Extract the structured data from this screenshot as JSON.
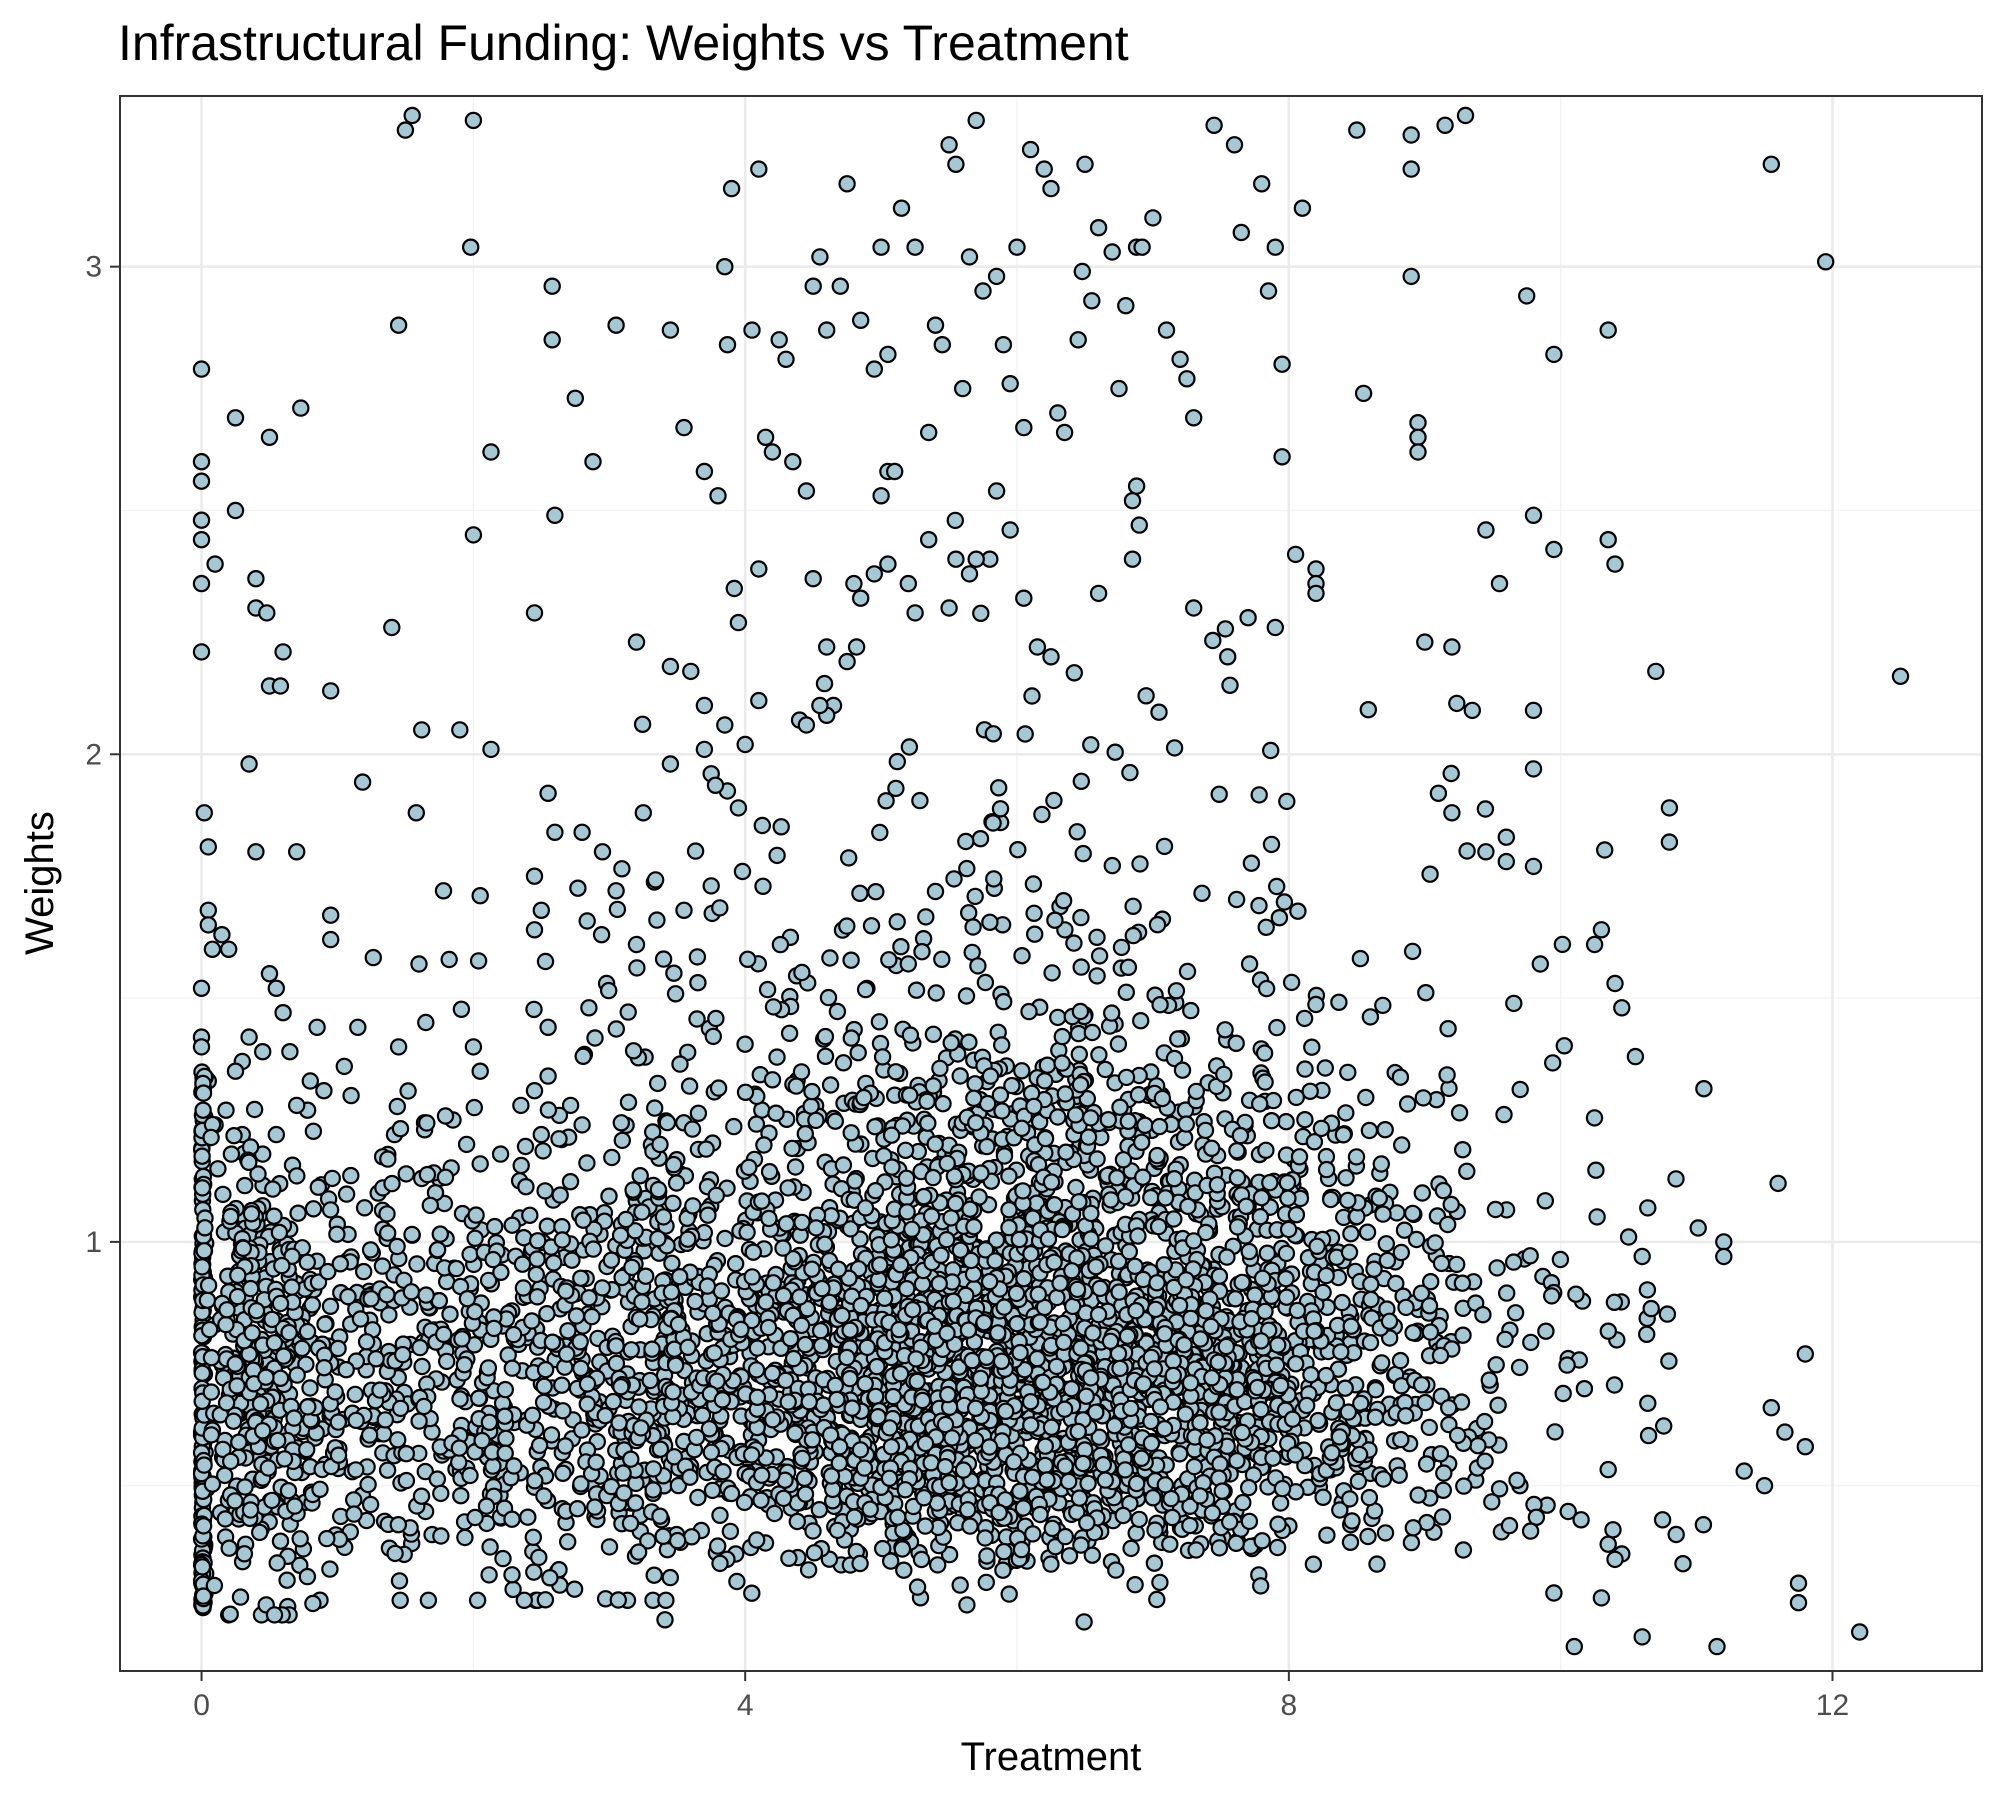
{
  "chart_data": {
    "type": "scatter",
    "title": "Infrastructural Funding: Weights vs Treatment",
    "xlabel": "Treatment",
    "ylabel": "Weights",
    "xlim": [
      -0.6,
      13.1
    ],
    "ylim": [
      0.12,
      3.35
    ],
    "x_ticks": [
      0,
      4,
      8,
      12
    ],
    "y_ticks": [
      1,
      2,
      3
    ],
    "x_tick_labels": [
      "0",
      "4",
      "8",
      "12"
    ],
    "y_tick_labels": [
      "1",
      "2",
      "3"
    ],
    "grid": true,
    "legend": "none",
    "point_fill": "#a6c8d4",
    "point_edge": "#000000",
    "approx_point_count": 5200,
    "points": [
      [
        0.0,
        2.79
      ],
      [
        0.0,
        2.6
      ],
      [
        0.0,
        2.56
      ],
      [
        0.0,
        2.48
      ],
      [
        0.0,
        2.44
      ],
      [
        0.0,
        2.35
      ],
      [
        0.0,
        2.21
      ],
      [
        0.02,
        1.88
      ],
      [
        0.05,
        1.81
      ],
      [
        0.1,
        2.39
      ],
      [
        0.05,
        1.68
      ],
      [
        0.05,
        1.65
      ],
      [
        0.08,
        1.6
      ],
      [
        0.0,
        1.52
      ],
      [
        0.0,
        1.42
      ],
      [
        0.0,
        1.4
      ],
      [
        0.25,
        2.69
      ],
      [
        0.25,
        2.5
      ],
      [
        0.4,
        2.36
      ],
      [
        0.4,
        2.3
      ],
      [
        0.48,
        2.29
      ],
      [
        0.5,
        2.14
      ],
      [
        0.6,
        2.21
      ],
      [
        0.58,
        2.14
      ],
      [
        0.5,
        2.65
      ],
      [
        0.73,
        2.71
      ],
      [
        0.95,
        2.13
      ],
      [
        0.35,
        1.98
      ],
      [
        0.4,
        1.8
      ],
      [
        0.7,
        1.8
      ],
      [
        0.95,
        1.67
      ],
      [
        0.95,
        1.62
      ],
      [
        1.45,
        2.88
      ],
      [
        1.4,
        2.26
      ],
      [
        1.5,
        3.28
      ],
      [
        1.55,
        3.31
      ],
      [
        1.62,
        2.05
      ],
      [
        1.58,
        1.88
      ],
      [
        1.6,
        1.57
      ],
      [
        1.65,
        1.45
      ],
      [
        1.78,
        1.72
      ],
      [
        1.9,
        2.05
      ],
      [
        1.98,
        3.04
      ],
      [
        2.0,
        3.3
      ],
      [
        2.0,
        2.45
      ],
      [
        2.05,
        1.71
      ],
      [
        2.13,
        2.62
      ],
      [
        2.13,
        2.01
      ],
      [
        2.45,
        2.29
      ],
      [
        2.45,
        1.75
      ],
      [
        2.5,
        1.68
      ],
      [
        2.58,
        2.96
      ],
      [
        2.58,
        2.85
      ],
      [
        2.6,
        2.49
      ],
      [
        2.55,
        1.92
      ],
      [
        2.6,
        1.84
      ],
      [
        2.75,
        2.73
      ],
      [
        2.8,
        1.84
      ],
      [
        2.45,
        1.64
      ],
      [
        2.88,
        2.6
      ],
      [
        2.95,
        1.8
      ],
      [
        3.05,
        2.88
      ],
      [
        3.2,
        2.23
      ],
      [
        3.45,
        2.87
      ],
      [
        3.45,
        2.18
      ],
      [
        3.45,
        1.98
      ],
      [
        3.55,
        2.67
      ],
      [
        3.7,
        2.58
      ],
      [
        3.7,
        2.1
      ],
      [
        3.8,
        2.53
      ],
      [
        3.85,
        3.0
      ],
      [
        3.87,
        2.84
      ],
      [
        3.9,
        3.16
      ],
      [
        3.92,
        2.34
      ],
      [
        3.95,
        2.27
      ],
      [
        4.05,
        2.87
      ],
      [
        4.1,
        3.2
      ],
      [
        4.15,
        2.65
      ],
      [
        4.1,
        2.11
      ],
      [
        4.0,
        2.02
      ],
      [
        4.2,
        2.62
      ],
      [
        4.25,
        2.85
      ],
      [
        4.3,
        2.81
      ],
      [
        4.4,
        2.07
      ],
      [
        4.5,
        2.96
      ],
      [
        4.55,
        3.02
      ],
      [
        4.6,
        2.87
      ],
      [
        4.7,
        2.96
      ],
      [
        4.75,
        3.17
      ],
      [
        4.85,
        2.89
      ],
      [
        4.95,
        2.79
      ],
      [
        5.0,
        3.04
      ],
      [
        5.05,
        2.82
      ],
      [
        5.15,
        3.12
      ],
      [
        5.25,
        3.04
      ],
      [
        5.35,
        2.66
      ],
      [
        5.4,
        2.88
      ],
      [
        5.45,
        2.84
      ],
      [
        5.5,
        3.25
      ],
      [
        5.55,
        3.21
      ],
      [
        5.6,
        2.75
      ],
      [
        5.65,
        3.02
      ],
      [
        5.7,
        3.3
      ],
      [
        5.75,
        2.95
      ],
      [
        5.85,
        2.98
      ],
      [
        5.9,
        2.84
      ],
      [
        5.95,
        2.76
      ],
      [
        6.0,
        3.04
      ],
      [
        6.05,
        2.67
      ],
      [
        6.1,
        3.24
      ],
      [
        6.2,
        3.2
      ],
      [
        6.25,
        3.16
      ],
      [
        6.3,
        2.7
      ],
      [
        6.35,
        2.66
      ],
      [
        6.45,
        2.85
      ],
      [
        6.48,
        2.99
      ],
      [
        6.5,
        3.21
      ],
      [
        6.55,
        2.93
      ],
      [
        6.6,
        3.08
      ],
      [
        6.7,
        3.03
      ],
      [
        6.75,
        2.75
      ],
      [
        6.8,
        2.92
      ],
      [
        6.88,
        3.04
      ],
      [
        6.92,
        3.04
      ],
      [
        7.0,
        3.1
      ],
      [
        7.1,
        2.87
      ],
      [
        7.2,
        2.81
      ],
      [
        7.25,
        2.77
      ],
      [
        7.3,
        2.69
      ],
      [
        7.45,
        3.29
      ],
      [
        7.6,
        3.25
      ],
      [
        7.65,
        3.07
      ],
      [
        7.8,
        3.17
      ],
      [
        7.85,
        2.95
      ],
      [
        7.9,
        3.04
      ],
      [
        8.1,
        3.12
      ],
      [
        7.95,
        2.8
      ],
      [
        7.95,
        2.61
      ],
      [
        8.5,
        3.28
      ],
      [
        8.9,
        3.27
      ],
      [
        9.15,
        3.29
      ],
      [
        9.3,
        3.31
      ],
      [
        8.9,
        3.2
      ],
      [
        8.9,
        2.98
      ],
      [
        8.55,
        2.74
      ],
      [
        8.95,
        2.68
      ],
      [
        8.95,
        2.65
      ],
      [
        8.95,
        2.62
      ],
      [
        9.45,
        2.46
      ],
      [
        9.55,
        2.35
      ],
      [
        9.0,
        2.23
      ],
      [
        9.2,
        2.22
      ],
      [
        9.35,
        2.09
      ],
      [
        9.95,
        2.82
      ],
      [
        9.75,
        2.94
      ],
      [
        9.8,
        2.49
      ],
      [
        9.95,
        2.42
      ],
      [
        10.35,
        2.87
      ],
      [
        10.35,
        2.44
      ],
      [
        10.4,
        2.39
      ],
      [
        9.8,
        2.09
      ],
      [
        9.8,
        1.97
      ],
      [
        10.7,
        2.17
      ],
      [
        10.8,
        1.89
      ],
      [
        10.8,
        1.82
      ],
      [
        11.55,
        3.21
      ],
      [
        11.95,
        3.01
      ],
      [
        12.5,
        2.16
      ],
      [
        8.2,
        2.38
      ],
      [
        8.2,
        2.35
      ],
      [
        8.2,
        2.33
      ],
      [
        8.05,
        2.41
      ],
      [
        7.9,
        2.26
      ],
      [
        7.7,
        2.28
      ],
      [
        7.55,
        2.2
      ],
      [
        7.3,
        2.3
      ],
      [
        6.95,
        2.12
      ],
      [
        6.85,
        2.4
      ],
      [
        6.9,
        2.47
      ],
      [
        6.85,
        2.52
      ],
      [
        6.88,
        2.55
      ],
      [
        6.6,
        2.33
      ],
      [
        6.25,
        2.2
      ],
      [
        6.15,
        2.22
      ],
      [
        6.05,
        2.32
      ],
      [
        5.95,
        2.46
      ],
      [
        5.85,
        2.54
      ],
      [
        5.8,
        2.4
      ],
      [
        5.7,
        2.4
      ],
      [
        5.65,
        2.37
      ],
      [
        5.55,
        2.4
      ],
      [
        5.5,
        2.3
      ],
      [
        5.35,
        2.44
      ],
      [
        5.25,
        2.29
      ],
      [
        5.2,
        2.35
      ],
      [
        5.05,
        2.39
      ],
      [
        4.95,
        2.37
      ],
      [
        4.85,
        2.32
      ],
      [
        4.8,
        2.35
      ],
      [
        4.75,
        2.19
      ],
      [
        4.65,
        2.1
      ],
      [
        4.6,
        2.08
      ],
      [
        4.55,
        2.1
      ],
      [
        4.45,
        2.06
      ],
      [
        5.05,
        2.58
      ],
      [
        5.1,
        2.58
      ],
      [
        5.0,
        2.53
      ],
      [
        4.82,
        2.22
      ],
      [
        4.6,
        2.22
      ],
      [
        4.35,
        2.6
      ],
      [
        4.45,
        2.54
      ],
      [
        4.5,
        2.36
      ],
      [
        4.1,
        2.38
      ],
      [
        3.85,
        2.06
      ],
      [
        3.7,
        2.01
      ],
      [
        3.6,
        2.17
      ],
      [
        3.75,
        1.96
      ],
      [
        3.95,
        1.89
      ],
      [
        3.75,
        1.73
      ],
      [
        3.55,
        1.68
      ],
      [
        3.35,
        1.66
      ],
      [
        3.2,
        1.61
      ],
      [
        3.4,
        1.58
      ],
      [
        3.25,
        1.88
      ],
      [
        3.05,
        1.72
      ],
      [
        2.98,
        1.53
      ],
      [
        2.85,
        1.48
      ],
      [
        2.55,
        1.44
      ],
      [
        2.55,
        1.34
      ],
      [
        2.45,
        1.31
      ],
      [
        2.8,
        1.24
      ],
      [
        2.65,
        1.21
      ],
      [
        2.5,
        1.22
      ],
      [
        2.35,
        1.28
      ],
      [
        2.2,
        1.18
      ],
      [
        2.05,
        1.16
      ],
      [
        1.95,
        1.2
      ],
      [
        2.0,
        1.4
      ],
      [
        2.05,
        1.35
      ],
      [
        1.85,
        1.25
      ],
      [
        1.75,
        1.13
      ],
      [
        1.62,
        1.13
      ],
      [
        1.45,
        1.4
      ],
      [
        1.42,
        1.22
      ],
      [
        1.3,
        1.1
      ],
      [
        1.2,
        1.07
      ],
      [
        1.1,
        1.3
      ],
      [
        1.15,
        1.44
      ],
      [
        1.05,
        1.36
      ],
      [
        0.85,
        1.44
      ],
      [
        0.9,
        1.31
      ],
      [
        0.8,
        1.33
      ],
      [
        0.78,
        1.27
      ],
      [
        0.7,
        1.28
      ],
      [
        0.65,
        1.39
      ],
      [
        0.6,
        1.47
      ],
      [
        0.55,
        1.52
      ],
      [
        0.5,
        1.55
      ],
      [
        0.45,
        1.39
      ],
      [
        0.35,
        1.42
      ],
      [
        0.3,
        1.37
      ],
      [
        0.25,
        1.35
      ],
      [
        0.2,
        1.6
      ],
      [
        0.15,
        1.63
      ],
      [
        0.05,
        1.33
      ],
      [
        0.1,
        1.24
      ],
      [
        0.18,
        1.27
      ],
      [
        0.05,
        1.22
      ],
      [
        0.3,
        1.22
      ],
      [
        0.45,
        1.18
      ],
      [
        0.55,
        1.22
      ],
      [
        0.12,
        1.15
      ],
      [
        9.1,
        1.92
      ],
      [
        9.2,
        1.88
      ],
      [
        9.45,
        1.8
      ],
      [
        9.6,
        1.78
      ],
      [
        9.8,
        1.77
      ],
      [
        9.6,
        1.83
      ],
      [
        9.85,
        1.57
      ],
      [
        10.25,
        1.61
      ],
      [
        10.3,
        1.64
      ],
      [
        10.4,
        1.53
      ],
      [
        10.45,
        1.48
      ],
      [
        10.55,
        1.38
      ],
      [
        10.5,
        1.01
      ],
      [
        10.6,
        0.97
      ],
      [
        11.2,
        1.0
      ],
      [
        11.2,
        0.97
      ],
      [
        11.6,
        1.12
      ],
      [
        11.8,
        0.77
      ],
      [
        11.55,
        0.66
      ],
      [
        11.8,
        0.58
      ],
      [
        11.65,
        0.61
      ],
      [
        11.35,
        0.53
      ],
      [
        11.5,
        0.5
      ],
      [
        11.75,
        0.3
      ],
      [
        11.75,
        0.26
      ],
      [
        12.2,
        0.2
      ],
      [
        11.05,
        0.42
      ],
      [
        10.75,
        0.43
      ],
      [
        10.85,
        0.4
      ],
      [
        10.9,
        0.34
      ],
      [
        11.15,
        0.17
      ],
      [
        10.35,
        0.38
      ],
      [
        10.6,
        0.19
      ],
      [
        10.45,
        0.36
      ],
      [
        10.1,
        0.17
      ],
      [
        10.3,
        0.27
      ],
      [
        9.95,
        0.28
      ],
      [
        10.15,
        0.43
      ],
      [
        9.9,
        0.46
      ],
      [
        9.7,
        0.5
      ]
    ]
  }
}
